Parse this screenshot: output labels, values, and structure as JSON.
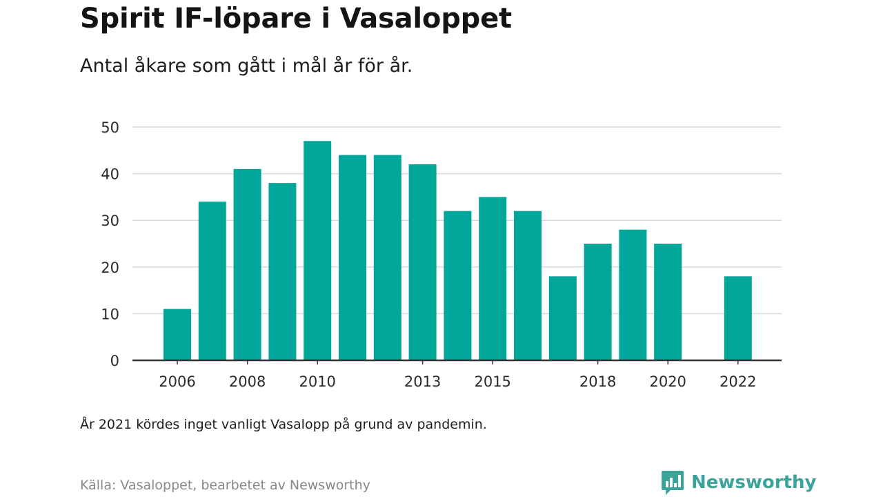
{
  "header": {
    "title": "Spirit IF-löpare i Vasaloppet",
    "subtitle": "Antal åkare som gått i mål år för år."
  },
  "footer": {
    "note": "År 2021 kördes inget vanligt Vasalopp på grund av pandemin.",
    "source": "Källa: Vasaloppet, bearbetet av Newsworthy",
    "brand": "Newsworthy",
    "logo_icon": "newsworthy-logo-icon"
  },
  "colors": {
    "bar": "#00a699",
    "grid": "#d9d9d9",
    "axis": "#333333",
    "brand": "#3aa39a"
  },
  "chart_data": {
    "type": "bar",
    "title": "Spirit IF-löpare i Vasaloppet",
    "subtitle": "Antal åkare som gått i mål år för år.",
    "xlabel": "",
    "ylabel": "",
    "categories": [
      2006,
      2007,
      2008,
      2009,
      2010,
      2011,
      2012,
      2013,
      2014,
      2015,
      2016,
      2017,
      2018,
      2019,
      2020,
      2021,
      2022
    ],
    "values": [
      11,
      34,
      41,
      38,
      47,
      44,
      44,
      42,
      32,
      35,
      32,
      18,
      25,
      28,
      25,
      null,
      18
    ],
    "x_tick_labels": [
      "2006",
      "2008",
      "2010",
      "2013",
      "2015",
      "2018",
      "2020",
      "2022"
    ],
    "y_ticks": [
      0,
      10,
      20,
      30,
      40,
      50
    ],
    "ylim": [
      0,
      50
    ],
    "grid": true,
    "legend": "none"
  }
}
